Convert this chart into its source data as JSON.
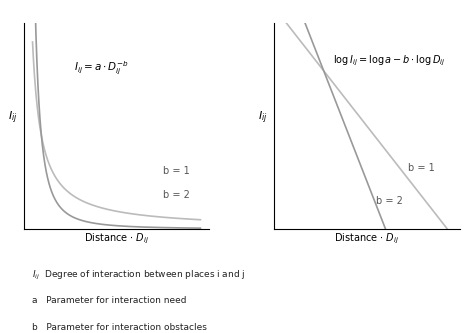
{
  "background_color": "#ffffff",
  "fig_width": 4.74,
  "fig_height": 3.33,
  "dpi": 100,
  "left_formula": "$I_{ij} = a \\cdot D_{ij}^{-b}$",
  "right_formula": "$\\log I_{ij} = \\log a - b \\cdot \\log D_{ij}$",
  "left_xlabel": "Distance $\\cdot$ $D_{ij}$",
  "right_xlabel": "Distance $\\cdot$ $D_{ij}$",
  "ylabel": "$I_{ij}$",
  "legend_b1": "b = 1",
  "legend_b2": "b = 2",
  "line_color_b1": "#aaaaaa",
  "line_color_b2": "#888888",
  "curve_color_b1": "#bbbbbb",
  "curve_color_b2": "#999999",
  "a": 10,
  "b1": 1,
  "b2": 2,
  "footnote_lines": [
    "$I_{ij}$  Degree of interaction between places i and j",
    "a   Parameter for interaction need",
    "b   Parameter for interaction obstacles"
  ]
}
